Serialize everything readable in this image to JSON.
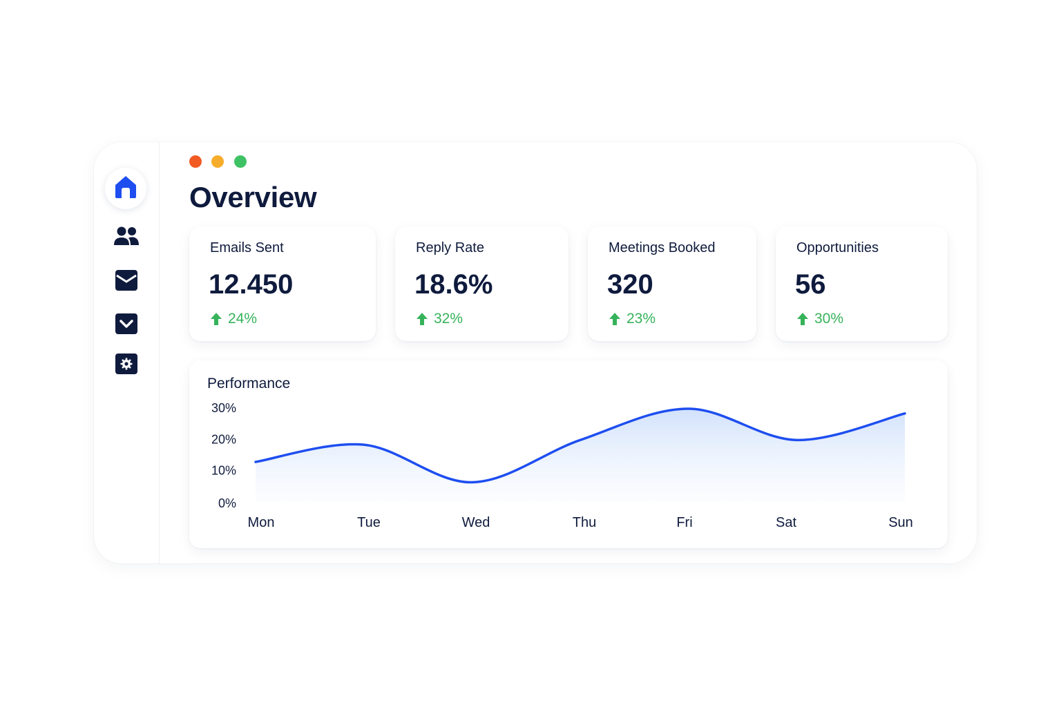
{
  "window": {
    "controls": [
      {
        "name": "close",
        "color": "#f25a24"
      },
      {
        "name": "minimize",
        "color": "#f7ad2c"
      },
      {
        "name": "maximize",
        "color": "#3fc265"
      }
    ]
  },
  "sidebar": {
    "items": [
      {
        "icon": "home-icon",
        "active": true
      },
      {
        "icon": "users-icon",
        "active": false
      },
      {
        "icon": "mail-icon",
        "active": false
      },
      {
        "icon": "check-icon",
        "active": false
      },
      {
        "icon": "gear-icon",
        "active": false
      }
    ]
  },
  "page": {
    "title": "Overview"
  },
  "cards": [
    {
      "label": "Emails Sent",
      "value": "12.450",
      "change": "24%"
    },
    {
      "label": "Reply Rate",
      "value": "18.6%",
      "change": "32%"
    },
    {
      "label": "Meetings Booked",
      "value": "320",
      "change": "23%"
    },
    {
      "label": "Opportunities",
      "value": "56",
      "change": "30%"
    }
  ],
  "colors": {
    "accent": "#1e4ef0",
    "text": "#0f1b3d",
    "positive": "#36b35a"
  },
  "performance": {
    "title": "Performance"
  },
  "chart_data": {
    "type": "area",
    "title": "Performance",
    "xlabel": "",
    "ylabel": "",
    "categories": [
      "Mon",
      "Tue",
      "Wed",
      "Thu",
      "Fri",
      "Sat",
      "Sun"
    ],
    "yticks": [
      "0%",
      "10%",
      "20%",
      "30%"
    ],
    "ylim": [
      0,
      30
    ],
    "series": [
      {
        "values": [
          13,
          18.5,
          6.5,
          20,
          30,
          20,
          28.5
        ]
      }
    ],
    "grid": false,
    "legend": "none"
  }
}
